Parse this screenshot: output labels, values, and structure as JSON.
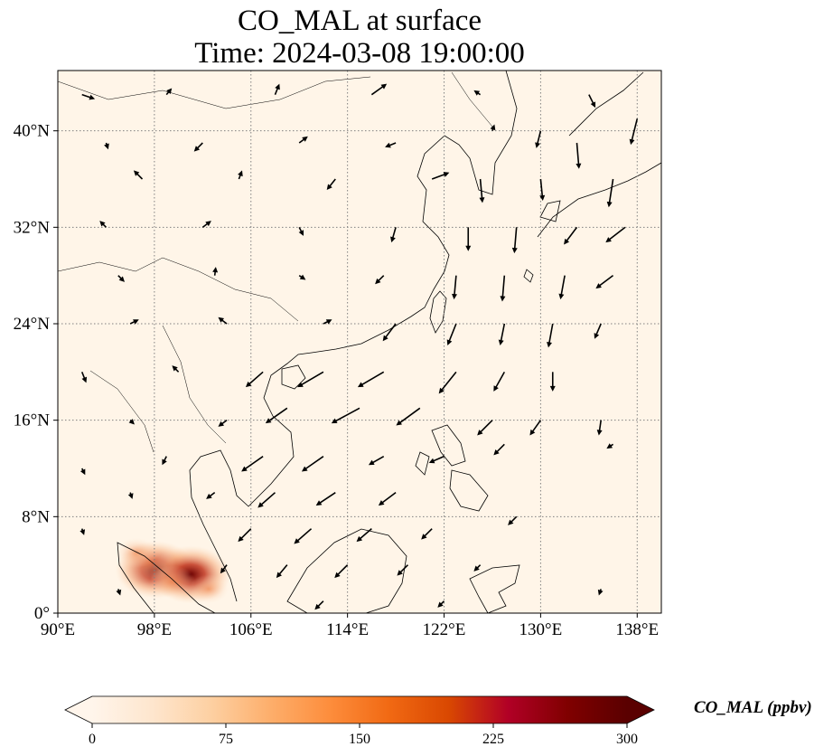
{
  "title": {
    "line1": "CO_MAL at surface",
    "line2": "Time: 2024-03-08 19:00:00"
  },
  "map": {
    "extent": {
      "lon_min": 90,
      "lon_max": 140,
      "lat_min": 0,
      "lat_max": 45
    },
    "x_ticks": [
      {
        "lon": 90,
        "label": "90°E"
      },
      {
        "lon": 98,
        "label": "98°E"
      },
      {
        "lon": 106,
        "label": "106°E"
      },
      {
        "lon": 114,
        "label": "114°E"
      },
      {
        "lon": 122,
        "label": "122°E"
      },
      {
        "lon": 130,
        "label": "130°E"
      },
      {
        "lon": 138,
        "label": "138°E"
      }
    ],
    "y_ticks": [
      {
        "lat": 0,
        "label": "0°"
      },
      {
        "lat": 8,
        "label": "8°N"
      },
      {
        "lat": 16,
        "label": "16°N"
      },
      {
        "lat": 24,
        "label": "24°N"
      },
      {
        "lat": 32,
        "label": "32°N"
      },
      {
        "lat": 40,
        "label": "40°N"
      }
    ],
    "gridlines": true,
    "background_color": "#fff5e8",
    "coastline_color": "#000000",
    "hotspots": [
      {
        "lon": 98.1,
        "lat": 3.6,
        "value": 300
      },
      {
        "lon": 101.0,
        "lat": 3.2,
        "value": 300
      },
      {
        "lon": 97.5,
        "lat": 4.2,
        "value": 160
      },
      {
        "lon": 99.5,
        "lat": 2.6,
        "value": 110
      },
      {
        "lon": 96.5,
        "lat": 5.0,
        "value": 90
      },
      {
        "lon": 102.5,
        "lat": 2.0,
        "value": 80
      }
    ],
    "wind_vectors": [
      {
        "lon": 92,
        "lat": 43,
        "u": 1.2,
        "v": -0.4
      },
      {
        "lon": 99,
        "lat": 43,
        "u": 0.5,
        "v": 0.6
      },
      {
        "lon": 108,
        "lat": 43,
        "u": 0.4,
        "v": 1.0
      },
      {
        "lon": 116,
        "lat": 43,
        "u": 1.4,
        "v": 1.0
      },
      {
        "lon": 125,
        "lat": 43,
        "u": -0.6,
        "v": 0.4
      },
      {
        "lon": 134,
        "lat": 43,
        "u": 0.6,
        "v": -1.2
      },
      {
        "lon": 138,
        "lat": 41,
        "u": -0.6,
        "v": -2.4
      },
      {
        "lon": 133,
        "lat": 39,
        "u": 0.2,
        "v": -2.4
      },
      {
        "lon": 130,
        "lat": 40,
        "u": -0.4,
        "v": -1.6
      },
      {
        "lon": 126,
        "lat": 40,
        "u": 0.2,
        "v": 0.6
      },
      {
        "lon": 118,
        "lat": 39,
        "u": -1.0,
        "v": -0.4
      },
      {
        "lon": 110,
        "lat": 39,
        "u": 0.8,
        "v": 0.6
      },
      {
        "lon": 102,
        "lat": 39,
        "u": -0.8,
        "v": -0.8
      },
      {
        "lon": 94,
        "lat": 39,
        "u": 0.2,
        "v": -0.6
      },
      {
        "lon": 136,
        "lat": 36,
        "u": -0.4,
        "v": -2.6
      },
      {
        "lon": 130,
        "lat": 36,
        "u": 0.2,
        "v": -2.0
      },
      {
        "lon": 125,
        "lat": 36,
        "u": 0.2,
        "v": -2.2
      },
      {
        "lon": 121,
        "lat": 36,
        "u": 1.6,
        "v": 0.6
      },
      {
        "lon": 113,
        "lat": 36,
        "u": -0.8,
        "v": -1.0
      },
      {
        "lon": 105,
        "lat": 36,
        "u": 0.3,
        "v": 0.8
      },
      {
        "lon": 97,
        "lat": 36,
        "u": -0.8,
        "v": 0.8
      },
      {
        "lon": 137,
        "lat": 32,
        "u": -1.8,
        "v": -1.4
      },
      {
        "lon": 133,
        "lat": 32,
        "u": -1.2,
        "v": -1.6
      },
      {
        "lon": 128,
        "lat": 32,
        "u": -0.2,
        "v": -2.4
      },
      {
        "lon": 124,
        "lat": 32,
        "u": 0.0,
        "v": -2.2
      },
      {
        "lon": 118,
        "lat": 32,
        "u": -0.4,
        "v": -1.4
      },
      {
        "lon": 110,
        "lat": 32,
        "u": 0.4,
        "v": -0.8
      },
      {
        "lon": 102,
        "lat": 32,
        "u": 0.8,
        "v": 0.6
      },
      {
        "lon": 94,
        "lat": 32,
        "u": -0.6,
        "v": 0.6
      },
      {
        "lon": 136,
        "lat": 28,
        "u": -1.6,
        "v": -1.2
      },
      {
        "lon": 132,
        "lat": 28,
        "u": -0.4,
        "v": -2.2
      },
      {
        "lon": 127,
        "lat": 28,
        "u": -0.2,
        "v": -2.4
      },
      {
        "lon": 123,
        "lat": 28,
        "u": -0.2,
        "v": -2.2
      },
      {
        "lon": 117,
        "lat": 28,
        "u": -0.8,
        "v": -0.8
      },
      {
        "lon": 110,
        "lat": 28,
        "u": 0.6,
        "v": -0.4
      },
      {
        "lon": 103,
        "lat": 28,
        "u": 0.1,
        "v": 0.8
      },
      {
        "lon": 95,
        "lat": 28,
        "u": 0.6,
        "v": -0.6
      },
      {
        "lon": 135,
        "lat": 24,
        "u": -0.6,
        "v": -1.4
      },
      {
        "lon": 131,
        "lat": 24,
        "u": -0.4,
        "v": -2.2
      },
      {
        "lon": 127,
        "lat": 24,
        "u": -0.4,
        "v": -2.0
      },
      {
        "lon": 123,
        "lat": 24,
        "u": -0.8,
        "v": -2.0
      },
      {
        "lon": 118,
        "lat": 24,
        "u": -1.2,
        "v": -1.6
      },
      {
        "lon": 112,
        "lat": 24,
        "u": 0.8,
        "v": 0.4
      },
      {
        "lon": 104,
        "lat": 24,
        "u": -0.8,
        "v": 0.6
      },
      {
        "lon": 96,
        "lat": 24,
        "u": 0.8,
        "v": 0.4
      },
      {
        "lon": 131,
        "lat": 20,
        "u": 0.0,
        "v": -1.8
      },
      {
        "lon": 127,
        "lat": 20,
        "u": -1.0,
        "v": -1.8
      },
      {
        "lon": 123,
        "lat": 20,
        "u": -1.6,
        "v": -2.0
      },
      {
        "lon": 117,
        "lat": 20,
        "u": -2.4,
        "v": -1.4
      },
      {
        "lon": 112,
        "lat": 20,
        "u": -2.4,
        "v": -1.4
      },
      {
        "lon": 107,
        "lat": 20,
        "u": -1.6,
        "v": -1.4
      },
      {
        "lon": 100,
        "lat": 20,
        "u": -0.6,
        "v": 0.6
      },
      {
        "lon": 92,
        "lat": 20,
        "u": 0.4,
        "v": -1.0
      },
      {
        "lon": 135,
        "lat": 16,
        "u": -0.2,
        "v": -1.4
      },
      {
        "lon": 130,
        "lat": 16,
        "u": -1.0,
        "v": -1.4
      },
      {
        "lon": 126,
        "lat": 16,
        "u": -1.4,
        "v": -1.4
      },
      {
        "lon": 120,
        "lat": 17,
        "u": -2.2,
        "v": -1.6
      },
      {
        "lon": 115,
        "lat": 17,
        "u": -2.6,
        "v": -1.4
      },
      {
        "lon": 109,
        "lat": 17,
        "u": -2.0,
        "v": -1.4
      },
      {
        "lon": 104,
        "lat": 16,
        "u": -0.8,
        "v": -0.6
      },
      {
        "lon": 96,
        "lat": 16,
        "u": 0.4,
        "v": -0.4
      },
      {
        "lon": 136,
        "lat": 14,
        "u": -0.6,
        "v": -0.4
      },
      {
        "lon": 127,
        "lat": 14,
        "u": -1.0,
        "v": -1.0
      },
      {
        "lon": 122,
        "lat": 13,
        "u": -1.4,
        "v": -0.6
      },
      {
        "lon": 117,
        "lat": 13,
        "u": -1.4,
        "v": -0.8
      },
      {
        "lon": 112,
        "lat": 13,
        "u": -2.0,
        "v": -1.4
      },
      {
        "lon": 107,
        "lat": 13,
        "u": -2.0,
        "v": -1.4
      },
      {
        "lon": 99,
        "lat": 13,
        "u": -0.4,
        "v": -0.8
      },
      {
        "lon": 92,
        "lat": 12,
        "u": 0.3,
        "v": -0.6
      },
      {
        "lon": 118,
        "lat": 10,
        "u": -1.6,
        "v": -1.2
      },
      {
        "lon": 113,
        "lat": 10,
        "u": -1.8,
        "v": -1.2
      },
      {
        "lon": 108,
        "lat": 10,
        "u": -1.6,
        "v": -1.4
      },
      {
        "lon": 103,
        "lat": 10,
        "u": -0.8,
        "v": -0.6
      },
      {
        "lon": 96,
        "lat": 10,
        "u": 0.2,
        "v": -0.6
      },
      {
        "lon": 128,
        "lat": 8,
        "u": -0.8,
        "v": -0.8
      },
      {
        "lon": 121,
        "lat": 7,
        "u": -1.0,
        "v": -1.0
      },
      {
        "lon": 116,
        "lat": 7,
        "u": -1.4,
        "v": -1.2
      },
      {
        "lon": 111,
        "lat": 7,
        "u": -1.6,
        "v": -1.4
      },
      {
        "lon": 106,
        "lat": 7,
        "u": -1.2,
        "v": -1.2
      },
      {
        "lon": 92,
        "lat": 7,
        "u": 0.2,
        "v": -0.6
      },
      {
        "lon": 125,
        "lat": 4,
        "u": -0.6,
        "v": -0.6
      },
      {
        "lon": 119,
        "lat": 4,
        "u": -1.0,
        "v": -1.0
      },
      {
        "lon": 114,
        "lat": 4,
        "u": -1.2,
        "v": -1.2
      },
      {
        "lon": 109,
        "lat": 4,
        "u": -1.0,
        "v": -1.2
      },
      {
        "lon": 104,
        "lat": 4,
        "u": -0.6,
        "v": -0.8
      },
      {
        "lon": 95,
        "lat": 2,
        "u": 0.2,
        "v": -0.6
      },
      {
        "lon": 135,
        "lat": 2,
        "u": -0.2,
        "v": -0.6
      },
      {
        "lon": 122,
        "lat": 1,
        "u": -0.6,
        "v": -0.6
      },
      {
        "lon": 112,
        "lat": 1,
        "u": -0.8,
        "v": -0.8
      }
    ]
  },
  "colorbar": {
    "label": "CO_MAL (ppbv)",
    "vmin": 0,
    "vmax": 300,
    "extend": "both",
    "ticks": [
      {
        "value": 0,
        "label": "0"
      },
      {
        "value": 75,
        "label": "75"
      },
      {
        "value": 150,
        "label": "150"
      },
      {
        "value": 225,
        "label": "225"
      },
      {
        "value": 300,
        "label": "300"
      }
    ],
    "colors": [
      "#fff5eb",
      "#fee6ce",
      "#fdd0a2",
      "#fdae6b",
      "#fd8d3c",
      "#f16913",
      "#d94801",
      "#b10026",
      "#800000",
      "#5a0000"
    ]
  }
}
